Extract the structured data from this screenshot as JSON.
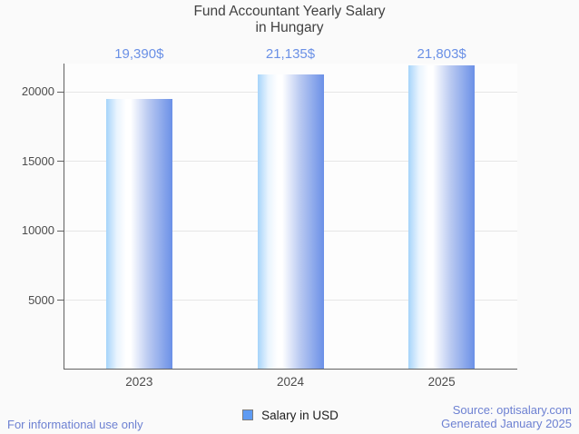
{
  "title": {
    "line1": "Fund Accountant Yearly Salary",
    "line2": "in Hungary"
  },
  "chart_data": {
    "type": "bar",
    "categories": [
      "2023",
      "2024",
      "2025"
    ],
    "series": [
      {
        "name": "Salary in USD",
        "values": [
          19390,
          21135,
          21803
        ]
      }
    ],
    "value_labels": [
      "19,390$",
      "21,135$",
      "21,803$"
    ],
    "title": "Fund Accountant Yearly Salary in Hungary",
    "xlabel": "",
    "ylabel": "",
    "yticks": [
      5000,
      10000,
      15000,
      20000
    ],
    "ylim": [
      0,
      22000
    ],
    "grid": true,
    "legend_position": "bottom"
  },
  "footer": {
    "left": "For informational use only",
    "source": "Source: optisalary.com",
    "generated": "Generated January 2025"
  },
  "colors": {
    "background": "#fafafa",
    "plot_background": "#fdfdfd",
    "title": "#414141",
    "axis_label": "#4c4c4c",
    "axis_line": "#616161",
    "gridline": "#e6e6e6",
    "value_label": "#6a90e6",
    "footer": "#6d81d2",
    "legend_text": "#1c1c1c",
    "legend_swatch": "#5e9bf3",
    "legend_swatch_border": "#7d7d7d",
    "bar_left": "#a6d4fa",
    "bar_mid": "#ffffff",
    "bar_right": "#6b90e7"
  }
}
